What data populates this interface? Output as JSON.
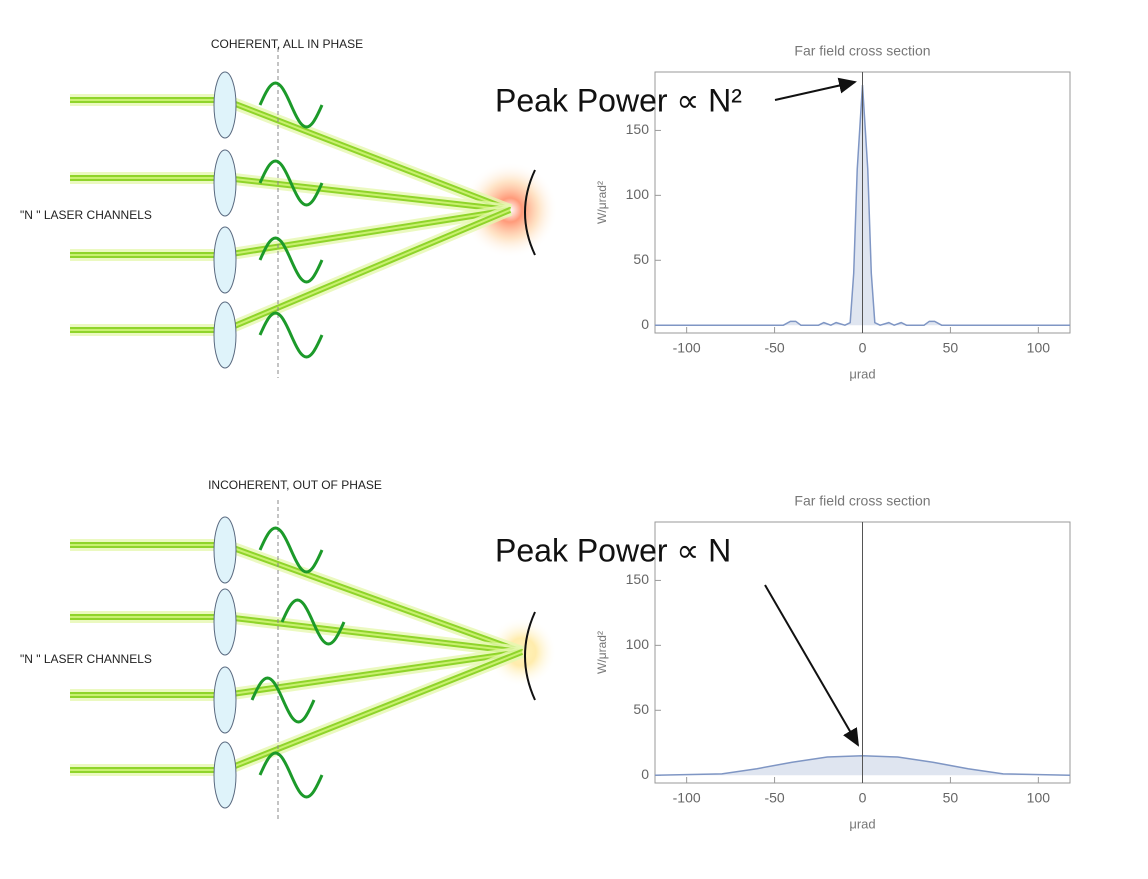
{
  "diagram": {
    "panels": [
      {
        "title": "COHERENT, ALL IN PHASE",
        "channels_label": "\"N \" LASER CHANNELS"
      },
      {
        "title": "INCOHERENT, OUT OF PHASE",
        "channels_label": "\"N \" LASER CHANNELS"
      }
    ]
  },
  "chart_data": [
    {
      "type": "area",
      "title": "Far field cross section",
      "xlabel": "μrad",
      "ylabel": "W/μrad²",
      "annotation": "Peak Power ∝ N²",
      "x": [
        -118,
        -45,
        -41,
        -38,
        -35,
        -25,
        -22,
        -18,
        -15,
        -10,
        -7,
        -5,
        -3,
        0,
        3,
        5,
        7,
        10,
        15,
        18,
        22,
        25,
        35,
        38,
        41,
        45,
        118
      ],
      "values": [
        0,
        0,
        3,
        3,
        0,
        0,
        2,
        0,
        2,
        0,
        2,
        40,
        120,
        185,
        120,
        40,
        2,
        0,
        2,
        0,
        2,
        0,
        0,
        3,
        3,
        0,
        0
      ],
      "color": "#7f96c4",
      "vline": 0,
      "xlim": [
        -118,
        118
      ],
      "ylim": [
        -6,
        195
      ],
      "xticks": [
        -100,
        -50,
        0,
        50,
        100
      ],
      "yticks": [
        0,
        50,
        100,
        150
      ]
    },
    {
      "type": "area",
      "title": "Far field cross section",
      "xlabel": "μrad",
      "ylabel": "W/μrad²",
      "annotation": "Peak Power ∝ N",
      "x": [
        -118,
        -80,
        -60,
        -40,
        -20,
        0,
        20,
        40,
        60,
        80,
        118
      ],
      "values": [
        0,
        1,
        5,
        10,
        14,
        15,
        14,
        10,
        5,
        1,
        0
      ],
      "color": "#7f96c4",
      "vline": 0,
      "xlim": [
        -118,
        118
      ],
      "ylim": [
        -6,
        195
      ],
      "xticks": [
        -100,
        -50,
        0,
        50,
        100
      ],
      "yticks": [
        0,
        50,
        100,
        150
      ]
    }
  ]
}
